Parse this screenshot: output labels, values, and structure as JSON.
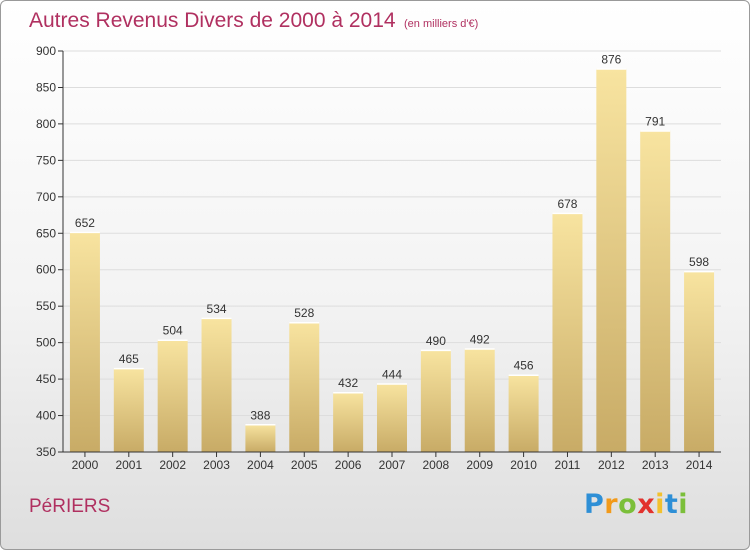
{
  "chart_data": {
    "type": "bar",
    "title": "Autres Revenus Divers de 2000 à 2014",
    "subtitle": "(en milliers d'€)",
    "categories": [
      "2000",
      "2001",
      "2002",
      "2003",
      "2004",
      "2005",
      "2006",
      "2007",
      "2008",
      "2009",
      "2010",
      "2011",
      "2012",
      "2013",
      "2014"
    ],
    "values": [
      652,
      465,
      504,
      534,
      388,
      528,
      432,
      444,
      490,
      492,
      456,
      678,
      876,
      791,
      598
    ],
    "ylim": [
      350,
      900
    ],
    "yticks": [
      350,
      400,
      450,
      500,
      550,
      600,
      650,
      700,
      750,
      800,
      850,
      900
    ],
    "grid": true,
    "legend": "none",
    "bar_color_light": "#f8e4a0",
    "bar_color_dark": "#c8ab66"
  },
  "footer": {
    "place": "PéRIERS"
  },
  "logo": {
    "letters": [
      "P",
      "r",
      "o",
      "x",
      "i",
      "t",
      "i"
    ],
    "colors": [
      "#2e8fd6",
      "#f29a1a",
      "#7bbf3a",
      "#e2322d",
      "#f2c12e",
      "#2e8fd6",
      "#7bbf3a"
    ]
  },
  "colors": {
    "title": "#b03060",
    "grid": "#dddddd",
    "axis": "#333333"
  }
}
